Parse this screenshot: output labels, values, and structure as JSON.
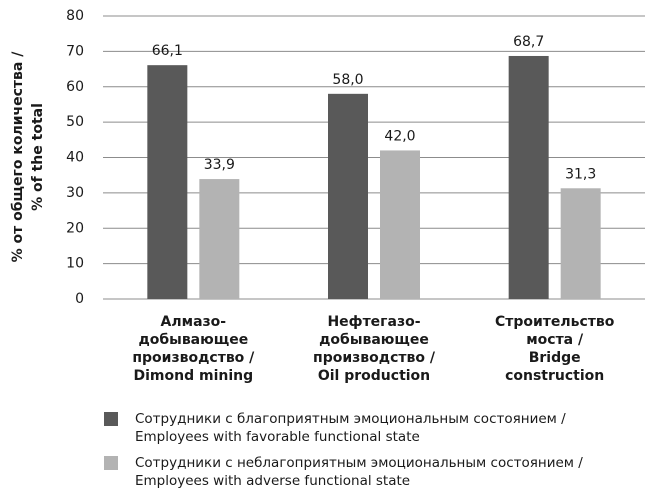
{
  "chart_data": {
    "type": "bar",
    "y_label": "% от общего количества /\n% of the total",
    "categories": [
      "Алмазо-\nдобывающее\nпроизводство /\nDimond mining",
      "Нефтегазо-\nдобывающее\nпроизводство /\nOil production",
      "Строительство\nмоста /\nBridge\nconstruction"
    ],
    "series": [
      {
        "name": "Сотрудники с благоприятным эмоциональным состоянием /\nEmployees with favorable functional state",
        "color": "#595959",
        "values": [
          66.1,
          58.0,
          68.7
        ],
        "value_labels": [
          "66,1",
          "58,0",
          "68,7"
        ]
      },
      {
        "name": "Сотрудники с неблагоприятным эмоциональным состоянием /\nEmployees with adverse functional state",
        "color": "#b3b3b3",
        "values": [
          33.9,
          42.0,
          31.3
        ],
        "value_labels": [
          "33,9",
          "42,0",
          "31,3"
        ]
      }
    ],
    "ylim": [
      0,
      80
    ],
    "yticks": [
      0,
      10,
      20,
      30,
      40,
      50,
      60,
      70,
      80
    ],
    "grid": true
  }
}
